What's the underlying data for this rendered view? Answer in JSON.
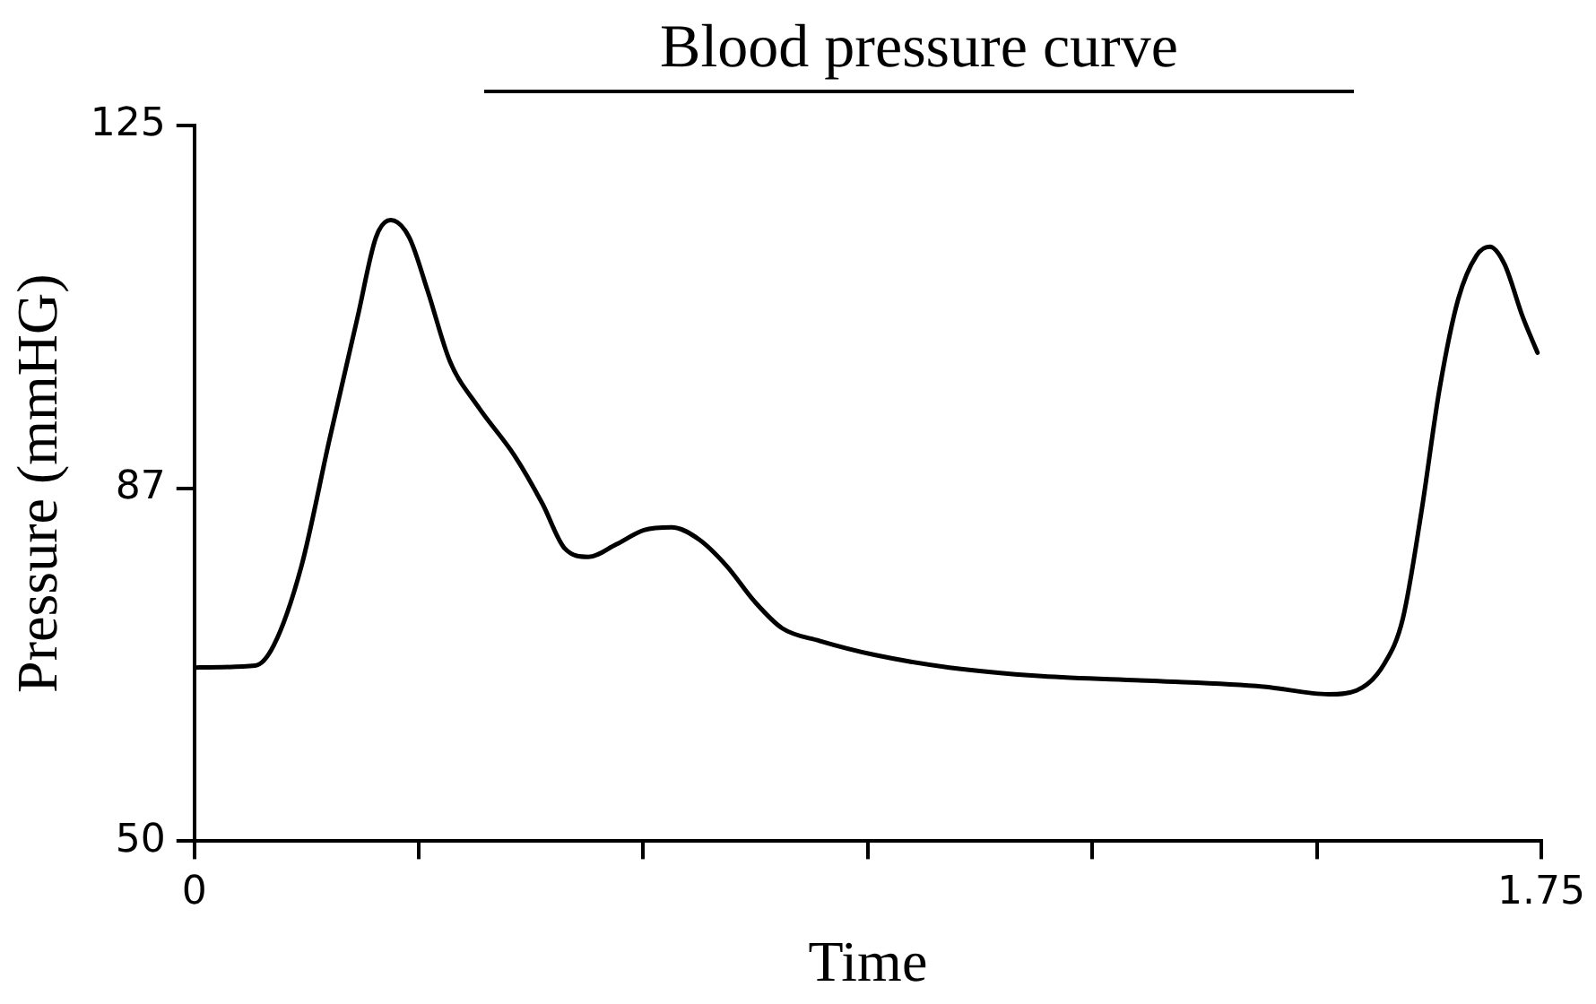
{
  "chart_data": {
    "type": "line",
    "title": "Blood pressure curve",
    "xlabel": "Time",
    "ylabel": "Pressure (mmHG)",
    "x": [
      0,
      0.079,
      0.103,
      0.139,
      0.175,
      0.212,
      0.236,
      0.255,
      0.279,
      0.303,
      0.332,
      0.368,
      0.416,
      0.452,
      0.481,
      0.512,
      0.548,
      0.584,
      0.62,
      0.656,
      0.692,
      0.728,
      0.764,
      0.812,
      0.885,
      0.981,
      1.101,
      1.245,
      1.389,
      1.474,
      1.51,
      1.546,
      1.57,
      1.594,
      1.618,
      1.642,
      1.666,
      1.683,
      1.702,
      1.726,
      1.745
    ],
    "series": [
      {
        "color": "#000000",
        "values": [
          68.2,
          68.4,
          70.5,
          78.8,
          91.9,
          104.9,
          113.3,
          115.1,
          113.3,
          107.7,
          100.3,
          95.6,
          90.4,
          85.4,
          80.7,
          79.8,
          81.1,
          82.6,
          82.9,
          81.6,
          78.8,
          75.1,
          72.3,
          71.0,
          69.5,
          68.2,
          67.3,
          66.8,
          66.2,
          65.4,
          65.8,
          68.6,
          73.3,
          84.4,
          97.5,
          106.8,
          111.4,
          112.3,
          110.5,
          104.9,
          101.2
        ]
      }
    ],
    "xlim": [
      0,
      1.75
    ],
    "xticks": [
      0,
      {
        "value": 0.2917,
        "label": null
      },
      {
        "value": 0.5833,
        "label": null
      },
      {
        "value": 0.875,
        "label": null
      },
      {
        "value": 1.1667,
        "label": null
      },
      {
        "value": 1.4583,
        "label": null
      },
      1.75
    ],
    "ylim": [
      50,
      125
    ],
    "yticks": [
      50,
      87,
      125
    ],
    "grid": false,
    "legend": false,
    "marker": "none",
    "line_style": "solid"
  }
}
